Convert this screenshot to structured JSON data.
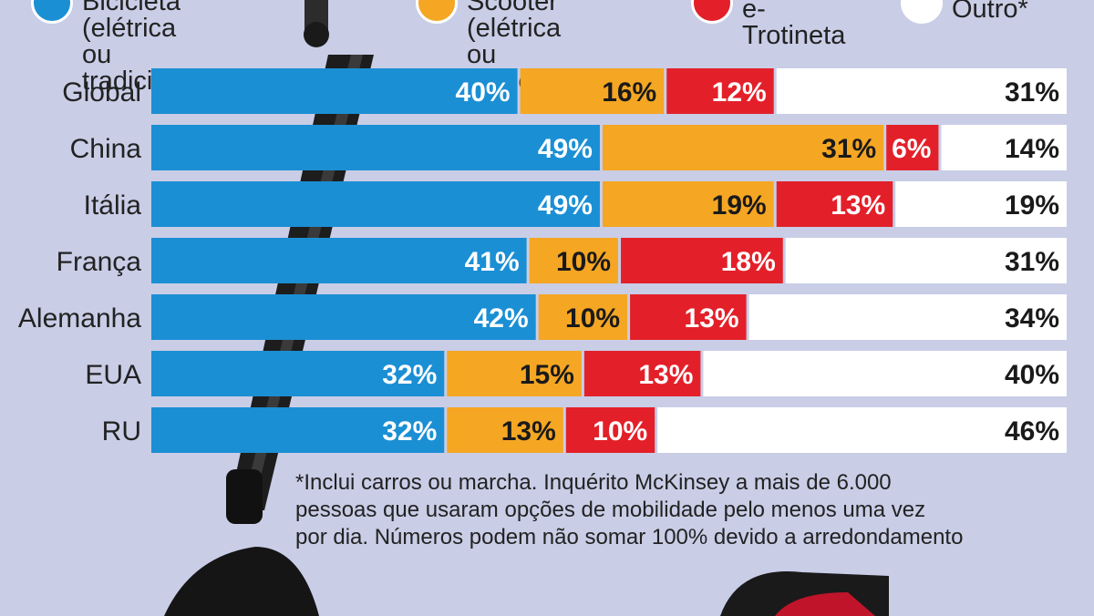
{
  "legend": [
    {
      "label": "Bicicleta (elétrica\nou tradicional)",
      "color": "#1b8fd4"
    },
    {
      "label": "Scooter (elétrica\nou tradicional)",
      "color": "#f5a623"
    },
    {
      "label": "e-Trotineta",
      "color": "#e3202a"
    },
    {
      "label": "Outro*",
      "color": "#ffffff"
    }
  ],
  "footnote": "*Inclui carros ou marcha. Inquérito McKinsey a mais de 6.000\npessoas que usaram opções de mobilidade pelo menos uma vez\npor dia. Números podem não somar 100% devido a arredondamento",
  "chart_data": {
    "type": "bar",
    "orientation": "horizontal",
    "stacked": true,
    "categories": [
      "Global",
      "China",
      "Itália",
      "França",
      "Alemanha",
      "EUA",
      "RU"
    ],
    "series": [
      {
        "name": "Bicicleta (elétrica ou tradicional)",
        "color": "#1b8fd4",
        "values": [
          40,
          49,
          49,
          41,
          42,
          32,
          32
        ]
      },
      {
        "name": "Scooter (elétrica ou tradicional)",
        "color": "#f5a623",
        "values": [
          16,
          31,
          19,
          10,
          10,
          15,
          13
        ]
      },
      {
        "name": "e-Trotineta",
        "color": "#e3202a",
        "values": [
          12,
          6,
          13,
          18,
          13,
          13,
          10
        ]
      },
      {
        "name": "Outro*",
        "color": "#ffffff",
        "values": [
          31,
          14,
          19,
          31,
          34,
          40,
          46
        ]
      }
    ],
    "value_suffix": "%",
    "xlim": [
      0,
      100
    ],
    "grid": false,
    "legend_position": "top"
  }
}
